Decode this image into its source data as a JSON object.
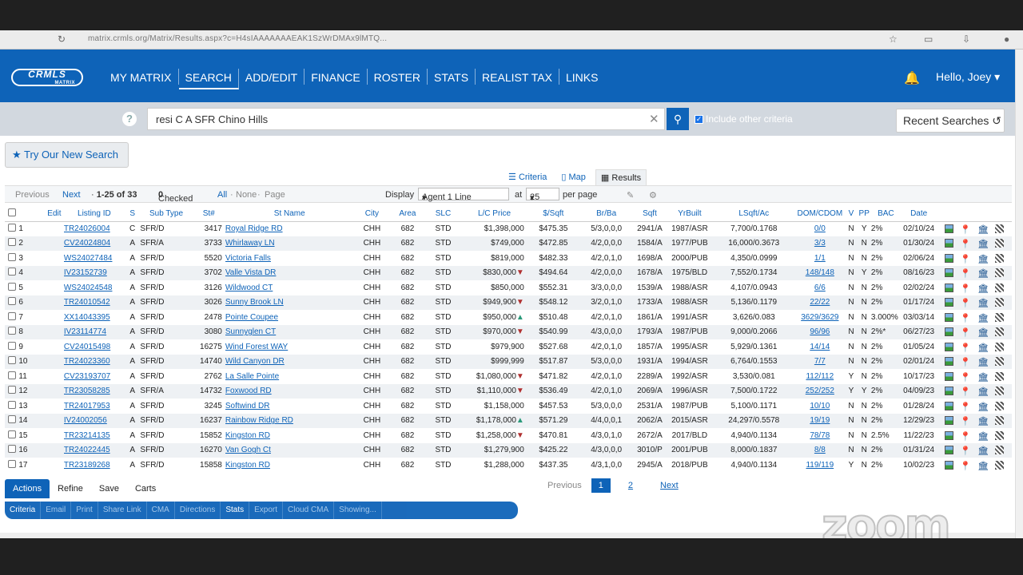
{
  "browser": {
    "url": "matrix.crmls.org/Matrix/Results.aspx?c=H4sIAAAAAAAEAK1SzWrDMAx9lMTQ...",
    "icons": [
      "reload-icon",
      "star-icon",
      "profile-icon"
    ]
  },
  "nav": {
    "logo": "CRMLS",
    "logo_sub": "MATRIX",
    "items": [
      {
        "label": "MY MATRIX"
      },
      {
        "label": "SEARCH"
      },
      {
        "label": "ADD/EDIT"
      },
      {
        "label": "FINANCE"
      },
      {
        "label": "ROSTER"
      },
      {
        "label": "STATS"
      },
      {
        "label": "REALIST TAX"
      },
      {
        "label": "LINKS"
      }
    ],
    "active": "SEARCH",
    "greeting": "Hello, Joey"
  },
  "search": {
    "query": "resi C A SFR Chino Hills",
    "include_label": "Include other criteria",
    "include_checked": true,
    "recent_label": "Recent Searches",
    "try_new_label": "Try Our New Search"
  },
  "view_tabs": {
    "criteria": "Criteria",
    "map": "Map",
    "results": "Results"
  },
  "controls": {
    "previous": "Previous",
    "next": "Next",
    "range": "1-25 of 33",
    "checked_label": "Checked",
    "checked_count": "0",
    "all": "All",
    "none": "None",
    "page": "Page",
    "display_label": "Display",
    "display_value": "Agent 1 Line",
    "at_label": "at",
    "per_value": "25",
    "per_page_label": "per page"
  },
  "table": {
    "columns": [
      "",
      "",
      "Edit",
      "Listing ID",
      "S",
      "Sub Type",
      "St#",
      "St Name",
      "City",
      "Area",
      "SLC",
      "L/C Price",
      "$/Sqft",
      "Br/Ba",
      "Sqft",
      "YrBuilt",
      "LSqft/Ac",
      "DOM/CDOM",
      "V",
      "PP",
      "BAC",
      "Date"
    ],
    "rows": [
      {
        "n": "1",
        "id": "TR24026004",
        "s": "C",
        "sub": "SFR/D",
        "stno": "3417",
        "stname": "Royal Ridge RD",
        "city": "CHH",
        "area": "682",
        "slc": "STD",
        "price": "$1,398,000",
        "arrow": "",
        "ppsf": "$475.35",
        "brba": "5/3,0,0,0",
        "sqft": "2941/A",
        "yr": "1987/ASR",
        "lsqft": "7,700/0.1768",
        "dom": "0/0",
        "v": "N",
        "pp": "Y",
        "bac": "2%",
        "date": "02/10/24"
      },
      {
        "n": "2",
        "id": "CV24024804",
        "s": "A",
        "sub": "SFR/A",
        "stno": "3733",
        "stname": "Whirlaway LN",
        "city": "CHH",
        "area": "682",
        "slc": "STD",
        "price": "$749,000",
        "arrow": "",
        "ppsf": "$472.85",
        "brba": "4/2,0,0,0",
        "sqft": "1584/A",
        "yr": "1977/PUB",
        "lsqft": "16,000/0.3673",
        "dom": "3/3",
        "v": "N",
        "pp": "N",
        "bac": "2%",
        "date": "01/30/24"
      },
      {
        "n": "3",
        "id": "WS24027484",
        "s": "A",
        "sub": "SFR/D",
        "stno": "5520",
        "stname": "Victoria Falls",
        "city": "CHH",
        "area": "682",
        "slc": "STD",
        "price": "$819,000",
        "arrow": "",
        "ppsf": "$482.33",
        "brba": "4/2,0,1,0",
        "sqft": "1698/A",
        "yr": "2000/PUB",
        "lsqft": "4,350/0.0999",
        "dom": "1/1",
        "v": "N",
        "pp": "N",
        "bac": "2%",
        "date": "02/06/24"
      },
      {
        "n": "4",
        "id": "IV23152739",
        "s": "A",
        "sub": "SFR/D",
        "stno": "3702",
        "stname": "Valle Vista DR",
        "city": "CHH",
        "area": "682",
        "slc": "STD",
        "price": "$830,000",
        "arrow": "down",
        "ppsf": "$494.64",
        "brba": "4/2,0,0,0",
        "sqft": "1678/A",
        "yr": "1975/BLD",
        "lsqft": "7,552/0.1734",
        "dom": "148/148",
        "v": "N",
        "pp": "Y",
        "bac": "2%",
        "date": "08/16/23"
      },
      {
        "n": "5",
        "id": "WS24024548",
        "s": "A",
        "sub": "SFR/D",
        "stno": "3126",
        "stname": "Wildwood CT",
        "city": "CHH",
        "area": "682",
        "slc": "STD",
        "price": "$850,000",
        "arrow": "",
        "ppsf": "$552.31",
        "brba": "3/3,0,0,0",
        "sqft": "1539/A",
        "yr": "1988/ASR",
        "lsqft": "4,107/0.0943",
        "dom": "6/6",
        "v": "N",
        "pp": "N",
        "bac": "2%",
        "date": "02/02/24"
      },
      {
        "n": "6",
        "id": "TR24010542",
        "s": "A",
        "sub": "SFR/D",
        "stno": "3026",
        "stname": "Sunny Brook LN",
        "city": "CHH",
        "area": "682",
        "slc": "STD",
        "price": "$949,900",
        "arrow": "down",
        "ppsf": "$548.12",
        "brba": "3/2,0,1,0",
        "sqft": "1733/A",
        "yr": "1988/ASR",
        "lsqft": "5,136/0.1179",
        "dom": "22/22",
        "v": "N",
        "pp": "N",
        "bac": "2%",
        "date": "01/17/24"
      },
      {
        "n": "7",
        "id": "XX14043395",
        "s": "A",
        "sub": "SFR/D",
        "stno": "2478",
        "stname": "Pointe Coupee",
        "city": "CHH",
        "area": "682",
        "slc": "STD",
        "price": "$950,000",
        "arrow": "up",
        "ppsf": "$510.48",
        "brba": "4/2,0,1,0",
        "sqft": "1861/A",
        "yr": "1991/ASR",
        "lsqft": "3,626/0.083",
        "dom": "3629/3629",
        "v": "N",
        "pp": "N",
        "bac": "3.000%",
        "date": "03/03/14"
      },
      {
        "n": "8",
        "id": "IV23114774",
        "s": "A",
        "sub": "SFR/D",
        "stno": "3080",
        "stname": "Sunnyglen CT",
        "city": "CHH",
        "area": "682",
        "slc": "STD",
        "price": "$970,000",
        "arrow": "down",
        "ppsf": "$540.99",
        "brba": "4/3,0,0,0",
        "sqft": "1793/A",
        "yr": "1987/PUB",
        "lsqft": "9,000/0.2066",
        "dom": "96/96",
        "v": "N",
        "pp": "N",
        "bac": "2%*",
        "date": "06/27/23"
      },
      {
        "n": "9",
        "id": "CV24015498",
        "s": "A",
        "sub": "SFR/D",
        "stno": "16275",
        "stname": "Wind Forest WAY",
        "city": "CHH",
        "area": "682",
        "slc": "STD",
        "price": "$979,900",
        "arrow": "",
        "ppsf": "$527.68",
        "brba": "4/2,0,1,0",
        "sqft": "1857/A",
        "yr": "1995/ASR",
        "lsqft": "5,929/0.1361",
        "dom": "14/14",
        "v": "N",
        "pp": "N",
        "bac": "2%",
        "date": "01/05/24"
      },
      {
        "n": "10",
        "id": "TR24023360",
        "s": "A",
        "sub": "SFR/D",
        "stno": "14740",
        "stname": "Wild Canyon DR",
        "city": "CHH",
        "area": "682",
        "slc": "STD",
        "price": "$999,999",
        "arrow": "",
        "ppsf": "$517.87",
        "brba": "5/3,0,0,0",
        "sqft": "1931/A",
        "yr": "1994/ASR",
        "lsqft": "6,764/0.1553",
        "dom": "7/7",
        "v": "N",
        "pp": "N",
        "bac": "2%",
        "date": "02/01/24"
      },
      {
        "n": "11",
        "id": "CV23193707",
        "s": "A",
        "sub": "SFR/D",
        "stno": "2762",
        "stname": "La Salle Pointe",
        "city": "CHH",
        "area": "682",
        "slc": "STD",
        "price": "$1,080,000",
        "arrow": "down",
        "ppsf": "$471.82",
        "brba": "4/2,0,1,0",
        "sqft": "2289/A",
        "yr": "1992/ASR",
        "lsqft": "3,530/0.081",
        "dom": "112/112",
        "v": "Y",
        "pp": "N",
        "bac": "2%",
        "date": "10/17/23"
      },
      {
        "n": "12",
        "id": "TR23058285",
        "s": "A",
        "sub": "SFR/A",
        "stno": "14732",
        "stname": "Foxwood RD",
        "city": "CHH",
        "area": "682",
        "slc": "STD",
        "price": "$1,110,000",
        "arrow": "down",
        "ppsf": "$536.49",
        "brba": "4/2,0,1,0",
        "sqft": "2069/A",
        "yr": "1996/ASR",
        "lsqft": "7,500/0.1722",
        "dom": "252/252",
        "v": "Y",
        "pp": "Y",
        "bac": "2%",
        "date": "04/09/23"
      },
      {
        "n": "13",
        "id": "TR24017953",
        "s": "A",
        "sub": "SFR/D",
        "stno": "3245",
        "stname": "Softwind DR",
        "city": "CHH",
        "area": "682",
        "slc": "STD",
        "price": "$1,158,000",
        "arrow": "",
        "ppsf": "$457.53",
        "brba": "5/3,0,0,0",
        "sqft": "2531/A",
        "yr": "1987/PUB",
        "lsqft": "5,100/0.1171",
        "dom": "10/10",
        "v": "N",
        "pp": "N",
        "bac": "2%",
        "date": "01/28/24"
      },
      {
        "n": "14",
        "id": "IV24002056",
        "s": "A",
        "sub": "SFR/D",
        "stno": "16237",
        "stname": "Rainbow Ridge RD",
        "city": "CHH",
        "area": "682",
        "slc": "STD",
        "price": "$1,178,000",
        "arrow": "up",
        "ppsf": "$571.29",
        "brba": "4/4,0,0,1",
        "sqft": "2062/A",
        "yr": "2015/ASR",
        "lsqft": "24,297/0.5578",
        "dom": "19/19",
        "v": "N",
        "pp": "N",
        "bac": "2%",
        "date": "12/29/23"
      },
      {
        "n": "15",
        "id": "TR23214135",
        "s": "A",
        "sub": "SFR/D",
        "stno": "15852",
        "stname": "Kingston RD",
        "city": "CHH",
        "area": "682",
        "slc": "STD",
        "price": "$1,258,000",
        "arrow": "down",
        "ppsf": "$470.81",
        "brba": "4/3,0,1,0",
        "sqft": "2672/A",
        "yr": "2017/BLD",
        "lsqft": "4,940/0.1134",
        "dom": "78/78",
        "v": "N",
        "pp": "N",
        "bac": "2.5%",
        "date": "11/22/23"
      },
      {
        "n": "16",
        "id": "TR24022445",
        "s": "A",
        "sub": "SFR/D",
        "stno": "16270",
        "stname": "Van Gogh Ct",
        "city": "CHH",
        "area": "682",
        "slc": "STD",
        "price": "$1,279,900",
        "arrow": "",
        "ppsf": "$425.22",
        "brba": "4/3,0,0,0",
        "sqft": "3010/P",
        "yr": "2001/PUB",
        "lsqft": "8,000/0.1837",
        "dom": "8/8",
        "v": "N",
        "pp": "N",
        "bac": "2%",
        "date": "01/31/24"
      },
      {
        "n": "17",
        "id": "TR23189268",
        "s": "A",
        "sub": "SFR/D",
        "stno": "15858",
        "stname": "Kingston RD",
        "city": "CHH",
        "area": "682",
        "slc": "STD",
        "price": "$1,288,000",
        "arrow": "",
        "ppsf": "$437.35",
        "brba": "4/3,1,0,0",
        "sqft": "2945/A",
        "yr": "2018/PUB",
        "lsqft": "4,940/0.1134",
        "dom": "119/119",
        "v": "Y",
        "pp": "N",
        "bac": "2%",
        "date": "10/02/23"
      }
    ]
  },
  "actions": {
    "tabs": [
      "Actions",
      "Refine",
      "Save",
      "Carts"
    ],
    "active": "Actions"
  },
  "tools": [
    "Criteria",
    "Email",
    "Print",
    "Share Link",
    "CMA",
    "Directions",
    "Stats",
    "Export",
    "Cloud CMA",
    "Showing..."
  ],
  "tools_on": [
    "Criteria",
    "Stats"
  ],
  "pager": {
    "previous": "Previous",
    "pages": [
      "1",
      "2"
    ],
    "current": "1",
    "next": "Next"
  },
  "watermark": "zoom"
}
